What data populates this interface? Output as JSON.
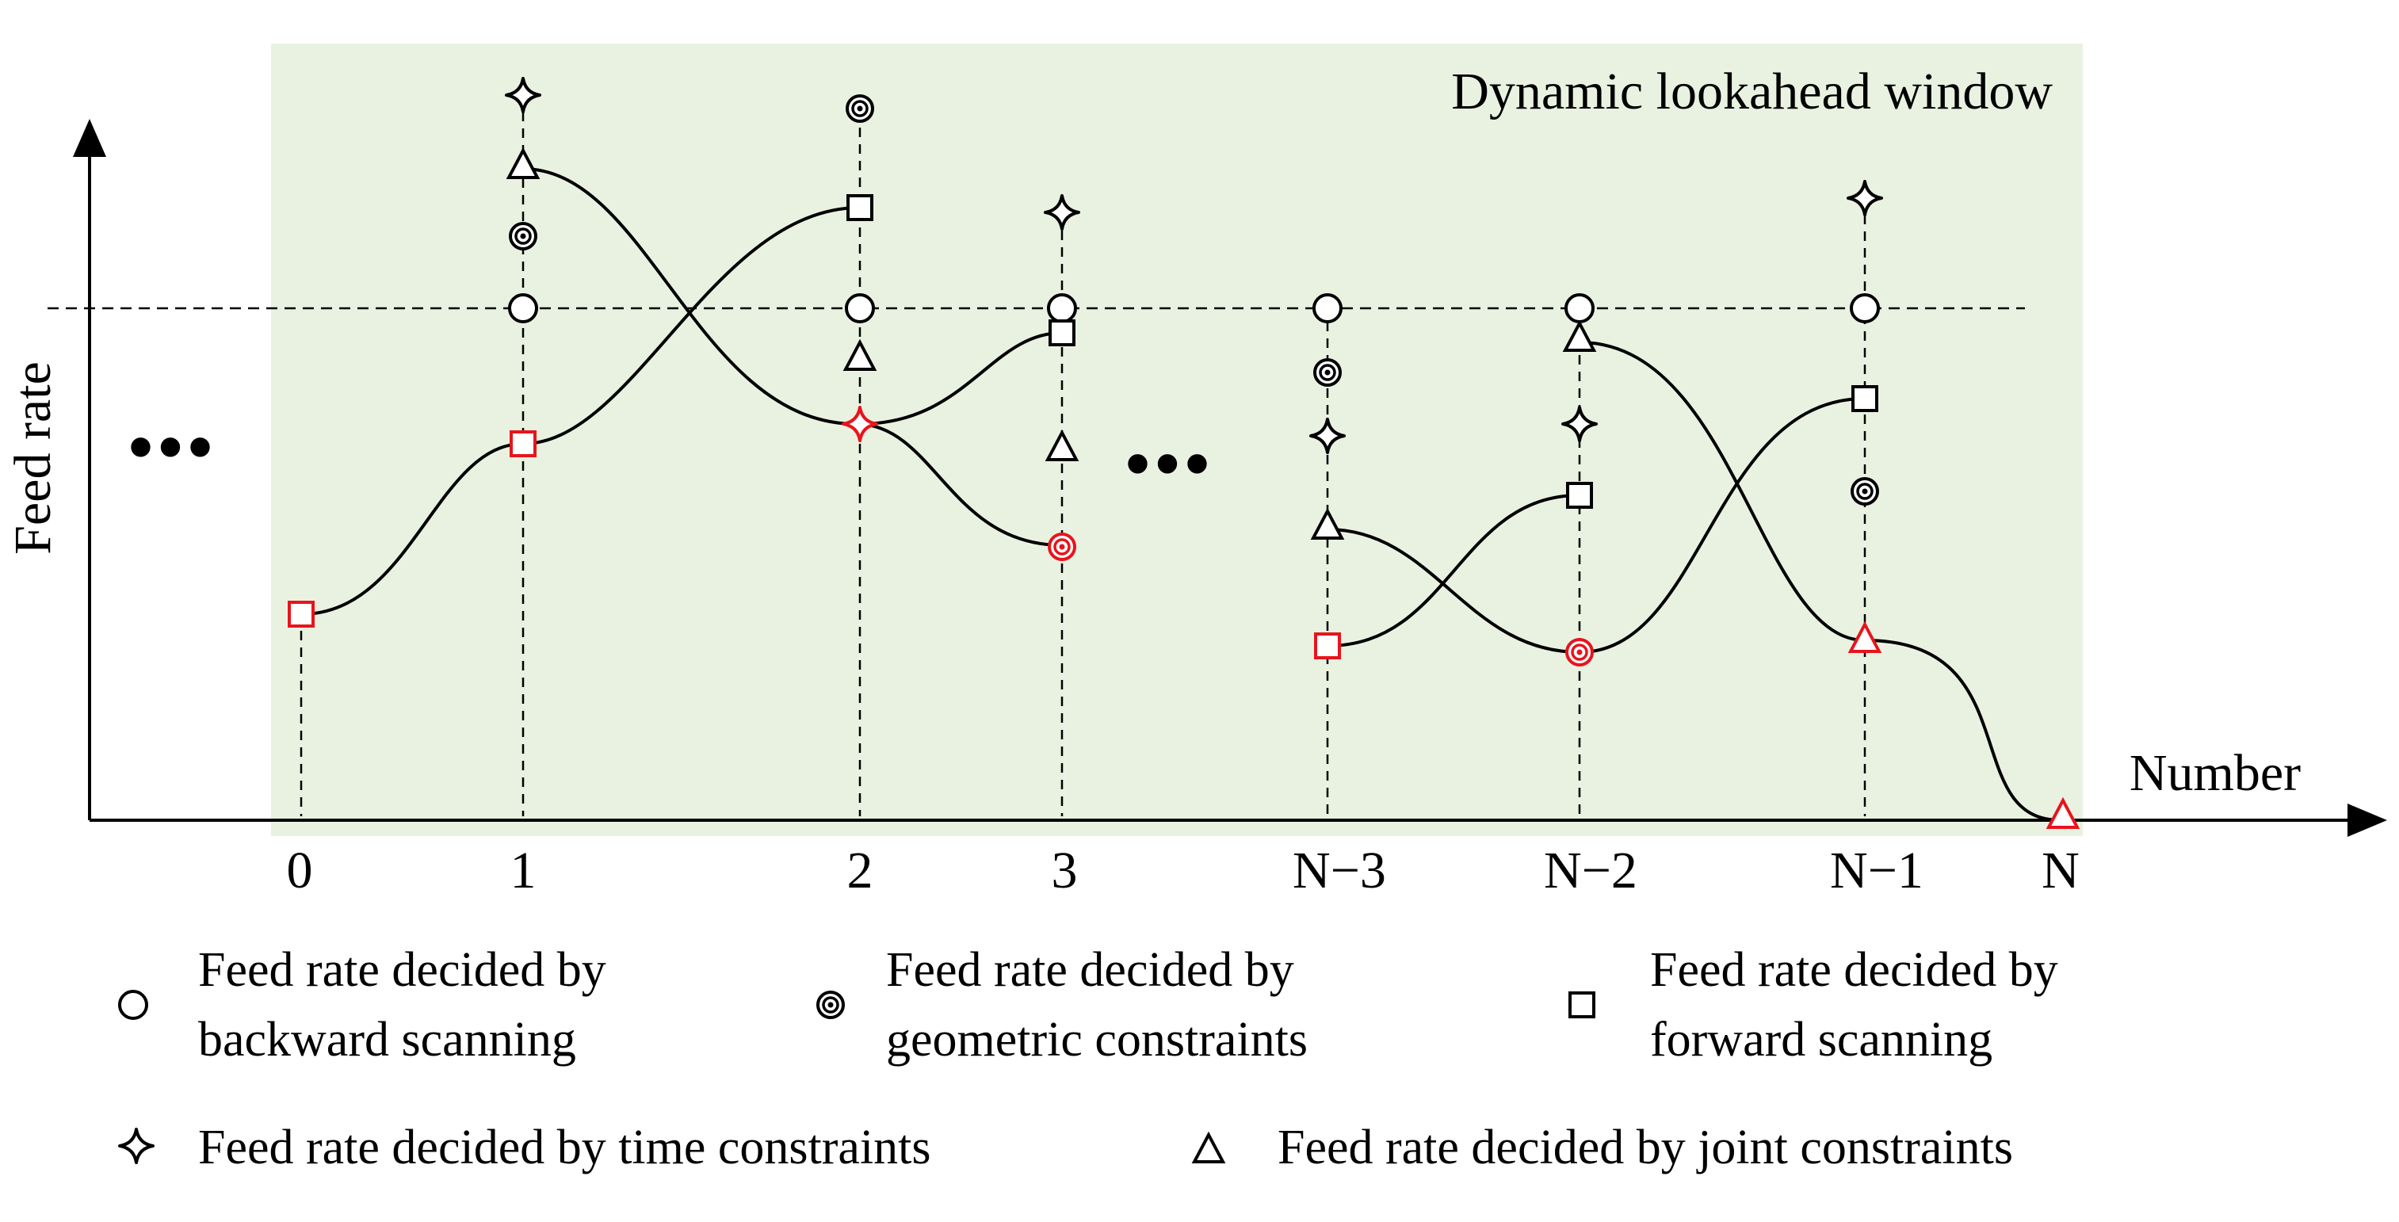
{
  "title": "Dynamic lookahead window",
  "axes": {
    "y_label": "Feed rate",
    "x_label": "Number"
  },
  "x_ticks": [
    "0",
    "1",
    "2",
    "3",
    "N−3",
    "N−2",
    "N−1",
    "N"
  ],
  "ellipsis": "•••",
  "colors": {
    "window_fill": "#e9f2e1",
    "highlight": "#e8141c",
    "ink": "#000000"
  },
  "legend": [
    {
      "marker": "circle-marker-icon",
      "lines": [
        "Feed rate decided by",
        "backward scanning"
      ]
    },
    {
      "marker": "target-marker-icon",
      "lines": [
        "Feed rate decided by",
        "geometric constraints"
      ]
    },
    {
      "marker": "square-marker-icon",
      "lines": [
        "Feed rate decided by",
        "forward scanning"
      ]
    },
    {
      "marker": "star-marker-icon",
      "lines": [
        "Feed rate decided by time constraints"
      ]
    },
    {
      "marker": "triangle-marker-icon",
      "lines": [
        "Feed rate decided by joint constraints"
      ]
    }
  ]
}
